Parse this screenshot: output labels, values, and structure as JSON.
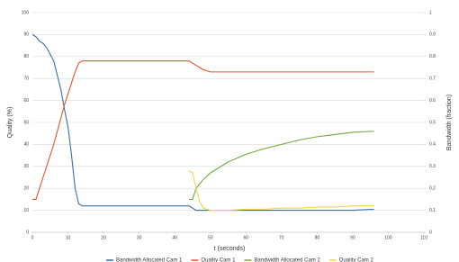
{
  "chart_data": {
    "type": "line",
    "x_label": "t (seconds)",
    "y_label": "Quality (%)",
    "y2_label": "Bandwidth (fraction)",
    "x": [
      0,
      1,
      2,
      3,
      4,
      6,
      8,
      9,
      10,
      11,
      12,
      13,
      14,
      20,
      30,
      40,
      44,
      45,
      46,
      47,
      48,
      50,
      55,
      60,
      65,
      70,
      75,
      80,
      85,
      90,
      96
    ],
    "series": [
      {
        "name": "Bandwidth Allocated Cam 1",
        "color": "#3b6ea5",
        "axis": "y2",
        "values": [
          0.9,
          0.89,
          0.87,
          0.86,
          0.84,
          0.78,
          0.65,
          0.56,
          0.48,
          0.35,
          0.2,
          0.13,
          0.12,
          0.12,
          0.12,
          0.12,
          0.12,
          0.11,
          0.1,
          0.1,
          0.1,
          0.1,
          0.1,
          0.1,
          0.1,
          0.1,
          0.1,
          0.1,
          0.1,
          0.1,
          0.105
        ]
      },
      {
        "name": "Quality Cam 1",
        "color": "#e0582c",
        "values": [
          15,
          15,
          20,
          25,
          30,
          40,
          52,
          58,
          63,
          68,
          73,
          77,
          78,
          78,
          78,
          78,
          78,
          77,
          76,
          75,
          74,
          73,
          73,
          73,
          73,
          73,
          73,
          73,
          73,
          73,
          73
        ]
      },
      {
        "name": "Bandwidth Allocated Cam 2",
        "color": "#72a83c",
        "axis": "y2",
        "values": [
          null,
          null,
          null,
          null,
          null,
          null,
          null,
          null,
          null,
          null,
          null,
          null,
          null,
          null,
          null,
          null,
          0.15,
          0.15,
          0.2,
          0.22,
          0.24,
          0.27,
          0.32,
          0.355,
          0.38,
          0.4,
          0.42,
          0.435,
          0.445,
          0.455,
          0.46
        ]
      },
      {
        "name": "Quality Cam 2",
        "color": "#f2d34a",
        "values": [
          null,
          null,
          null,
          null,
          null,
          null,
          null,
          null,
          null,
          null,
          null,
          null,
          null,
          null,
          null,
          null,
          28,
          27,
          20,
          14,
          11,
          10,
          10,
          10.5,
          10.5,
          11,
          11,
          11.5,
          11.5,
          12,
          12
        ]
      }
    ],
    "xlim": [
      0,
      110
    ],
    "xticks": [
      0,
      10,
      20,
      30,
      40,
      50,
      60,
      70,
      80,
      90,
      100,
      110
    ],
    "ylim": [
      0,
      100
    ],
    "yticks": [
      0,
      10,
      20,
      30,
      40,
      50,
      60,
      70,
      80,
      90,
      100
    ],
    "y2lim": [
      0,
      1
    ],
    "y2ticks": [
      0,
      0.1,
      0.2,
      0.3,
      0.4,
      0.5,
      0.6,
      0.7,
      0.8,
      0.9,
      1
    ],
    "grid": true,
    "legend": "bottom"
  }
}
